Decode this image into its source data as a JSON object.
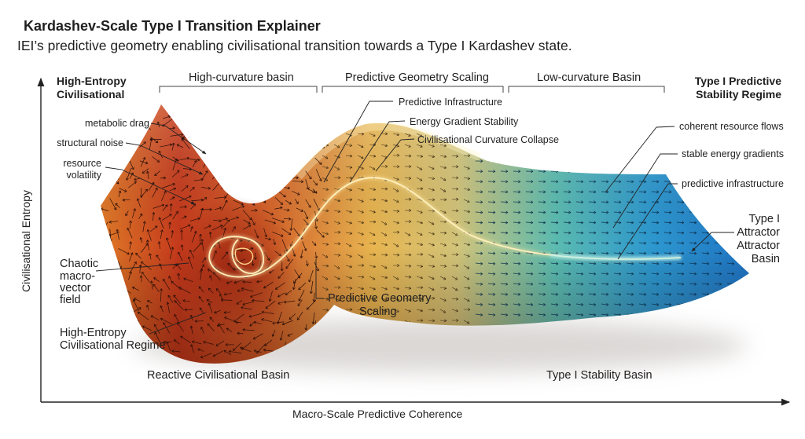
{
  "title": "Kardashev-Scale Type I Transition Explainer",
  "subtitle": "IEI’s predictive geometry enabling civilisational transition towards a Type I Kardashev state.",
  "axes": {
    "x_label": "Macro-Scale Predictive Coherence",
    "y_label": "Civilisational Entropy"
  },
  "regions": {
    "left_header": [
      "High-Entropy",
      "Civilisational"
    ],
    "right_header": [
      "Type I Predictive",
      "Stability Regime"
    ],
    "bracket_1": "High-curvature basin",
    "bracket_2": "Predictive Geometry Scaling",
    "bracket_3": "Low-curvature Basin"
  },
  "left_labels": {
    "metabolic_drag": "metabolic drag",
    "structural_noise": "structural noise",
    "resource_volatility": [
      "resource",
      "volatility"
    ],
    "chaotic_field": [
      "Chaotic",
      "macro-",
      "vector",
      "field"
    ],
    "high_entropy_regime": [
      "High-Entropy",
      "Civilisational Regime"
    ]
  },
  "center_labels": {
    "predictive_infrastructure": "Predictive Infrastructure",
    "energy_gradient_stability": "Energy Gradient Stability",
    "curvature_collapse": "Civilisational Curvature Collapse",
    "predictive_geometry_scaling": [
      "Predictive Geometry",
      "Scaling"
    ]
  },
  "right_labels": {
    "coherent_resource_flows": "coherent resource flows",
    "stable_energy_gradients": "stable energy gradients",
    "predictive_infrastructure": "predictive infrastructure",
    "attractor": [
      "Type I",
      "Attractor",
      "Attractor",
      "Basin"
    ]
  },
  "basins": {
    "reactive": "Reactive Civilisational Basin",
    "stability": "Type I Stability Basin"
  },
  "colors": {
    "red": "#b3261a",
    "orange": "#e8822a",
    "yellow": "#e9c25a",
    "teal": "#4fb6ad",
    "blue": "#1f7fd0",
    "trajectory": "#fbe7a0",
    "attractor_glow": "#9fe6f2"
  }
}
